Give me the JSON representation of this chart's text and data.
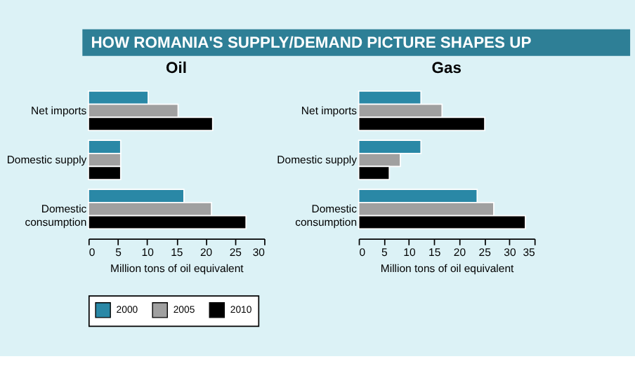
{
  "chart_data": [
    {
      "type": "bar",
      "orientation": "horizontal",
      "title": "HOW ROMANIA'S SUPPLY/DEMAND PICTURE SHAPES UP",
      "subtitle": "Oil",
      "xlabel": "Million tons of oil equivalent",
      "categories": [
        "Net imports",
        "Domestic supply",
        "Domestic consumption"
      ],
      "series": [
        {
          "name": "2000",
          "color": "#2a88a6",
          "values": [
            10.2,
            5.5,
            16.3
          ]
        },
        {
          "name": "2005",
          "color": "#a0a0a0",
          "values": [
            15.3,
            5.5,
            21.0
          ]
        },
        {
          "name": "2010",
          "color": "#000000",
          "values": [
            21.2,
            5.5,
            26.9
          ]
        }
      ],
      "xlim": [
        0,
        30
      ],
      "xticks": [
        0,
        5,
        10,
        15,
        20,
        25,
        30
      ],
      "grid": false,
      "legend": "bottom"
    },
    {
      "type": "bar",
      "orientation": "horizontal",
      "title": "Gas",
      "xlabel": "Million tons of oil equivalent",
      "categories": [
        "Net imports",
        "Domestic supply",
        "Domestic consumption"
      ],
      "series": [
        {
          "name": "2000",
          "color": "#2a88a6",
          "values": [
            12.4,
            12.4,
            23.6
          ]
        },
        {
          "name": "2005",
          "color": "#a0a0a0",
          "values": [
            16.6,
            8.3,
            26.9
          ]
        },
        {
          "name": "2010",
          "color": "#000000",
          "values": [
            25.1,
            6.1,
            33.2
          ]
        }
      ],
      "xlim": [
        0,
        35
      ],
      "xticks": [
        0,
        5,
        10,
        15,
        20,
        25,
        30,
        35
      ],
      "grid": false,
      "legend": "bottom"
    }
  ]
}
